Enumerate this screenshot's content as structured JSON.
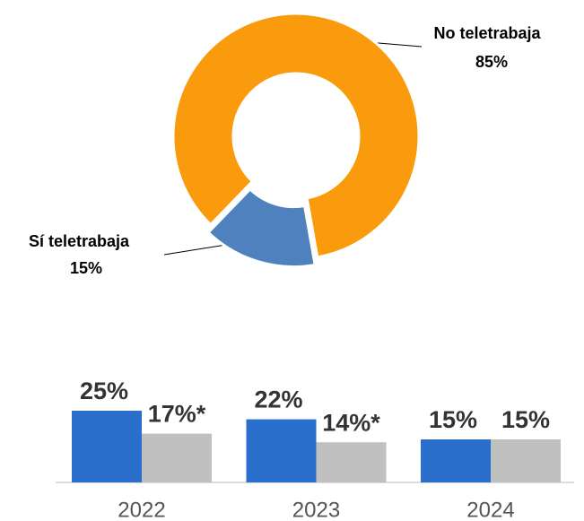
{
  "chart_data": [
    {
      "type": "pie",
      "categories": [
        "No teletrabaja",
        "Sí teletrabaja"
      ],
      "values": [
        85,
        15
      ],
      "value_labels": [
        "85%",
        "15%"
      ],
      "colors": [
        "#f99b0c",
        "#4e81bd"
      ],
      "donut": true
    },
    {
      "type": "bar",
      "categories": [
        "2022",
        "2023",
        "2024"
      ],
      "series": [
        {
          "color": "#2a6fcb",
          "values": [
            25,
            22,
            15
          ],
          "value_labels": [
            "25%",
            "22%",
            "15%"
          ]
        },
        {
          "color": "#c0c0c0",
          "values": [
            17,
            14,
            15
          ],
          "value_labels": [
            "17%*",
            "14%*",
            "15%"
          ]
        }
      ]
    }
  ]
}
